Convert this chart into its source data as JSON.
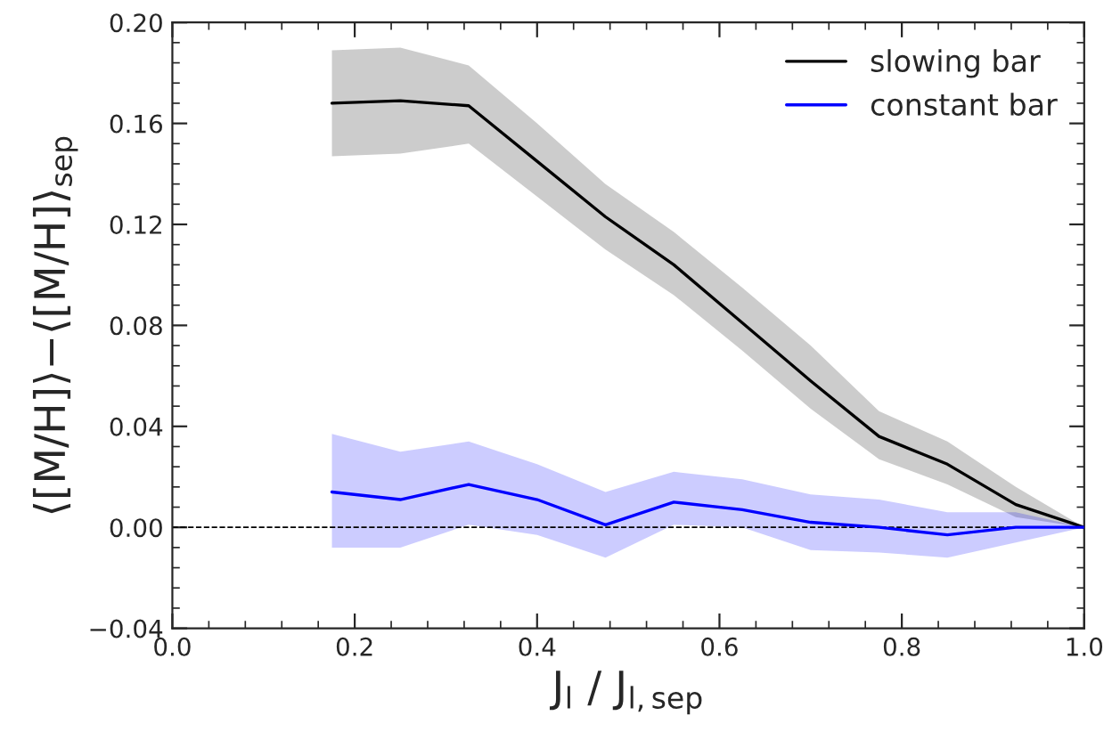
{
  "chart_data": {
    "type": "line",
    "xlabel": "J$_{l}$ / J$_{l,sep}$",
    "ylabel": "⟨[M/H]⟩−⟨[M/H]⟩$_{sep}$",
    "x": [
      0.175,
      0.25,
      0.325,
      0.4,
      0.475,
      0.55,
      0.625,
      0.7,
      0.775,
      0.85,
      0.925,
      1.0
    ],
    "series": [
      {
        "name": "slowing bar",
        "color": "#000000",
        "values": [
          0.168,
          0.169,
          0.167,
          0.145,
          0.123,
          0.104,
          0.081,
          0.058,
          0.036,
          0.025,
          0.009,
          0.0
        ],
        "lower": [
          0.147,
          0.148,
          0.152,
          0.131,
          0.11,
          0.092,
          0.07,
          0.047,
          0.027,
          0.017,
          0.004,
          0.0
        ],
        "upper": [
          0.189,
          0.19,
          0.183,
          0.16,
          0.136,
          0.117,
          0.095,
          0.072,
          0.046,
          0.034,
          0.016,
          0.0
        ]
      },
      {
        "name": "constant bar",
        "color": "#0000ff",
        "values": [
          0.014,
          0.011,
          0.017,
          0.011,
          0.001,
          0.01,
          0.007,
          0.002,
          0.0,
          -0.003,
          0.0,
          0.0
        ],
        "lower": [
          -0.008,
          -0.008,
          0.001,
          -0.003,
          -0.012,
          0.001,
          0.0,
          -0.009,
          -0.01,
          -0.012,
          -0.006,
          0.0
        ],
        "upper": [
          0.037,
          0.03,
          0.034,
          0.025,
          0.014,
          0.022,
          0.019,
          0.013,
          0.011,
          0.006,
          0.006,
          0.0
        ]
      }
    ],
    "xlim": [
      0.0,
      1.0
    ],
    "xticks": [
      {
        "value": 0.0,
        "label": "0.0"
      },
      0.2,
      0.4,
      0.6,
      0.8,
      {
        "value": 1.0,
        "label": "1.0"
      }
    ],
    "ylim": [
      -0.04,
      0.2
    ],
    "yticks": [
      {
        "value": -0.04,
        "label": "−0.04"
      },
      {
        "value": 0.0,
        "label": "0.00"
      },
      0.04,
      0.08,
      0.12,
      0.16,
      {
        "value": 0.2,
        "label": "0.20"
      }
    ],
    "ref_lines": [
      {
        "axis": "y",
        "value": 0.0,
        "color": "#000000",
        "line_style": "dashed"
      }
    ],
    "legend": "top right",
    "grid": false,
    "line_style": "solid"
  }
}
